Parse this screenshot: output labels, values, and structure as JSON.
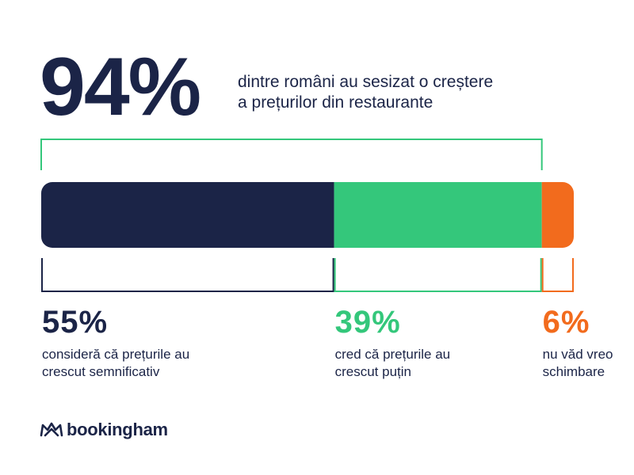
{
  "headline": {
    "value": "94%",
    "text_lines": [
      "dintre români au sesizat o creștere",
      "a prețurilor din restaurante"
    ]
  },
  "colors": {
    "navy": "#1b2447",
    "green": "#34c77b",
    "orange": "#f26b1d"
  },
  "chart_data": {
    "type": "bar",
    "orientation": "horizontal-stacked",
    "total": 100,
    "bracket_group": {
      "value": 94,
      "covers": [
        "considerabil",
        "putin"
      ]
    },
    "segments": [
      {
        "key": "considerabil",
        "value": 55,
        "value_label": "55%",
        "color": "#1b2447",
        "label_lines": [
          "consideră că prețurile au",
          "crescut semnificativ"
        ]
      },
      {
        "key": "putin",
        "value": 39,
        "value_label": "39%",
        "color": "#34c77b",
        "label_lines": [
          "cred că prețurile au",
          "crescut puțin"
        ]
      },
      {
        "key": "nicio",
        "value": 6,
        "value_label": "6%",
        "color": "#f26b1d",
        "label_lines": [
          "nu văd vreo",
          "schimbare"
        ]
      }
    ]
  },
  "brand": {
    "name": "bookingham",
    "icon": "crown-icon"
  }
}
